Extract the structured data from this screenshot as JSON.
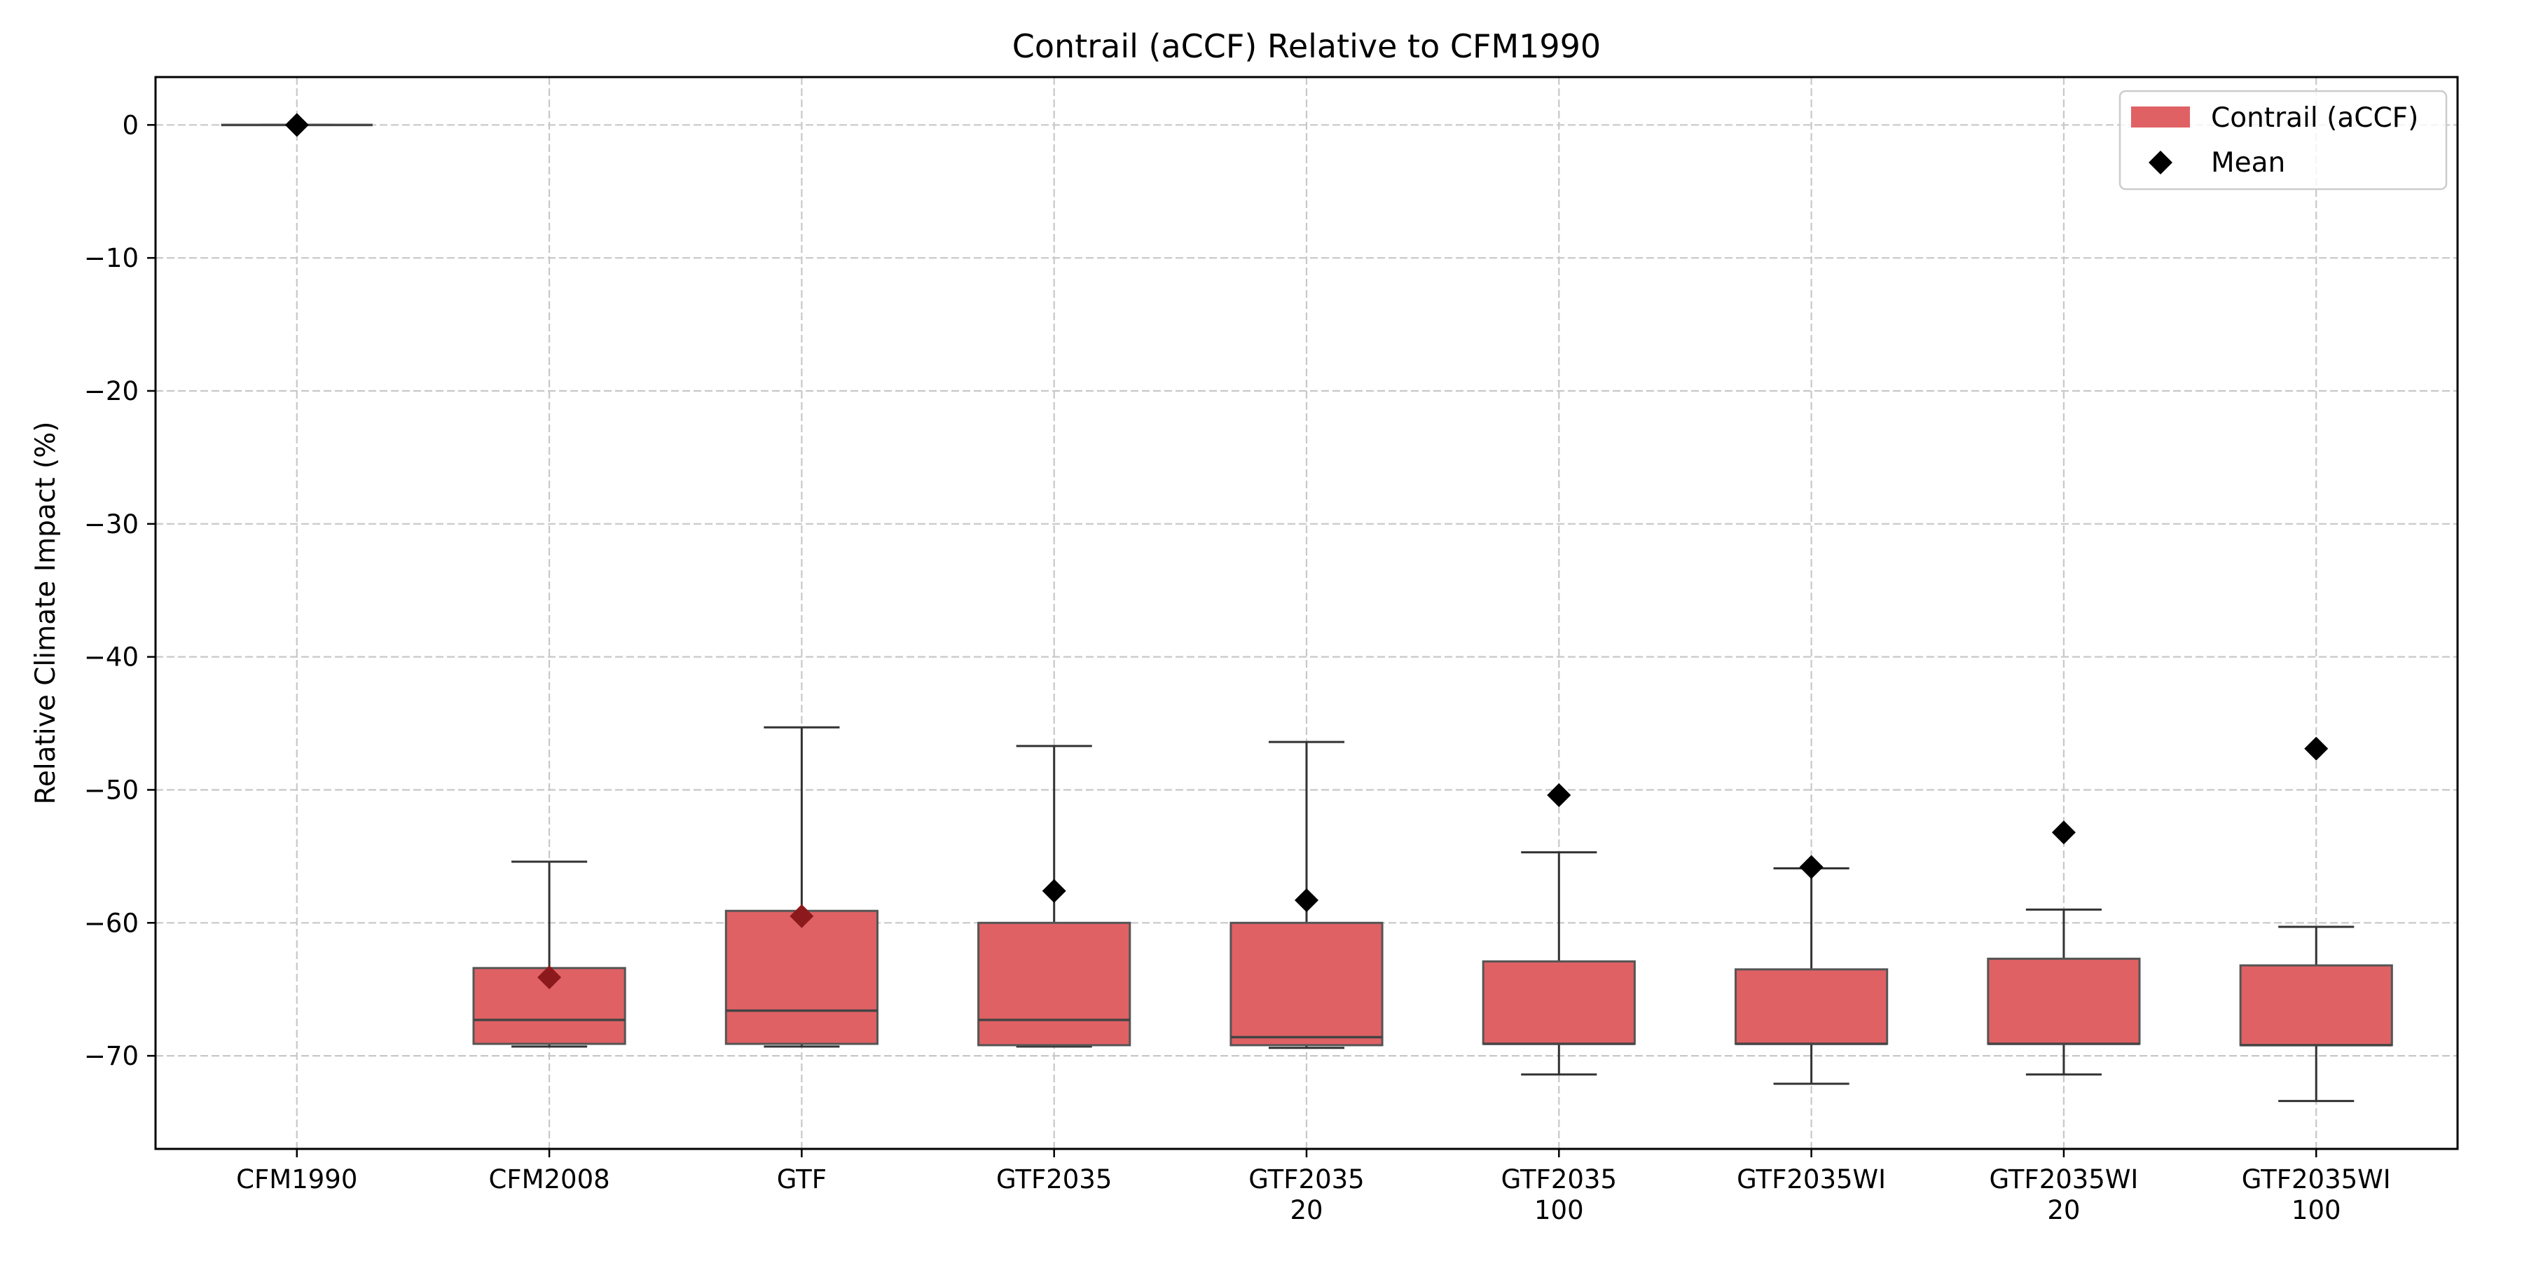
{
  "chart_data": {
    "type": "box",
    "title": "Contrail (aCCF) Relative to CFM1990",
    "xlabel": "",
    "ylabel": "Relative Climate Impact (%)",
    "ylim": [
      -77,
      3.6
    ],
    "yticks": [
      0,
      -10,
      -20,
      -30,
      -40,
      -50,
      -60,
      -70
    ],
    "ytick_labels": [
      "0",
      "−10",
      "−20",
      "−30",
      "−40",
      "−50",
      "−60",
      "−70"
    ],
    "grid": true,
    "legend_position": "top-right",
    "legend": [
      "Contrail (aCCF)",
      "Mean"
    ],
    "box_color": "#e06164",
    "mean_marker_color": "#000000",
    "categories": [
      {
        "label": [
          "CFM1990"
        ],
        "whisker_low": 0,
        "q1": 0,
        "median": 0,
        "q3": 0,
        "whisker_high": 0,
        "mean": 0
      },
      {
        "label": [
          "CFM2008"
        ],
        "whisker_low": -69.3,
        "q1": -69.1,
        "median": -67.3,
        "q3": -63.4,
        "whisker_high": -55.4,
        "mean": -64.1
      },
      {
        "label": [
          "GTF"
        ],
        "whisker_low": -69.3,
        "q1": -69.1,
        "median": -66.6,
        "q3": -59.1,
        "whisker_high": -45.3,
        "mean": -59.5
      },
      {
        "label": [
          "GTF2035"
        ],
        "whisker_low": -69.3,
        "q1": -69.2,
        "median": -67.3,
        "q3": -60.0,
        "whisker_high": -46.7,
        "mean": -57.6
      },
      {
        "label": [
          "GTF2035",
          "20"
        ],
        "whisker_low": -69.4,
        "q1": -69.2,
        "median": -68.6,
        "q3": -60.0,
        "whisker_high": -46.4,
        "mean": -58.3
      },
      {
        "label": [
          "GTF2035",
          "100"
        ],
        "whisker_low": -71.4,
        "q1": -69.1,
        "median": -69.1,
        "q3": -62.9,
        "whisker_high": -54.7,
        "mean": -50.4
      },
      {
        "label": [
          "GTF2035WI"
        ],
        "whisker_low": -72.1,
        "q1": -69.1,
        "median": -69.1,
        "q3": -63.5,
        "whisker_high": -55.9,
        "mean": -55.8
      },
      {
        "label": [
          "GTF2035WI",
          "20"
        ],
        "whisker_low": -71.4,
        "q1": -69.1,
        "median": -69.1,
        "q3": -62.7,
        "whisker_high": -59.0,
        "mean": -53.2
      },
      {
        "label": [
          "GTF2035WI",
          "100"
        ],
        "whisker_low": -73.4,
        "q1": -69.2,
        "median": -69.2,
        "q3": -63.2,
        "whisker_high": -60.3,
        "mean": -46.9
      }
    ]
  }
}
